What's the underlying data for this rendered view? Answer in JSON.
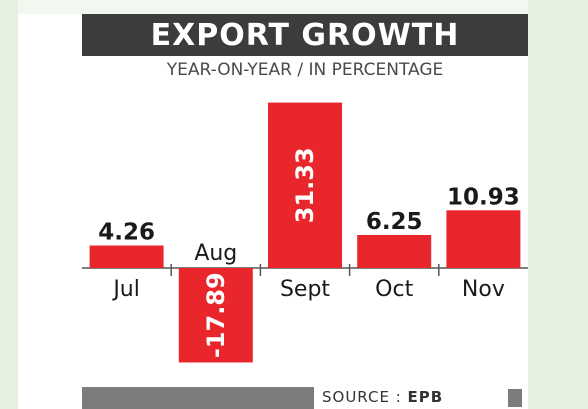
{
  "header": {
    "title": "EXPORT GROWTH",
    "subtitle": "YEAR-ON-YEAR / IN PERCENTAGE"
  },
  "footer": {
    "source_label": "SOURCE : ",
    "source_name": "EPB"
  },
  "colors": {
    "bar": "#e8262c",
    "title_bg": "#3c3c3c",
    "axis": "#555555",
    "footer_bar": "#7c7c7c"
  },
  "chart_data": {
    "type": "bar",
    "title": "EXPORT GROWTH",
    "subtitle": "YEAR-ON-YEAR / IN PERCENTAGE",
    "categories": [
      "Jul",
      "Aug",
      "Sept",
      "Oct",
      "Nov"
    ],
    "values": [
      4.26,
      -17.89,
      31.33,
      6.25,
      10.93
    ],
    "value_labels": [
      "4.26",
      "-17.89",
      "31.33",
      "6.25",
      "10.93"
    ],
    "xlabel": "",
    "ylabel": "",
    "ylim": [
      -20,
      35
    ],
    "grid": false,
    "legend": "none"
  }
}
